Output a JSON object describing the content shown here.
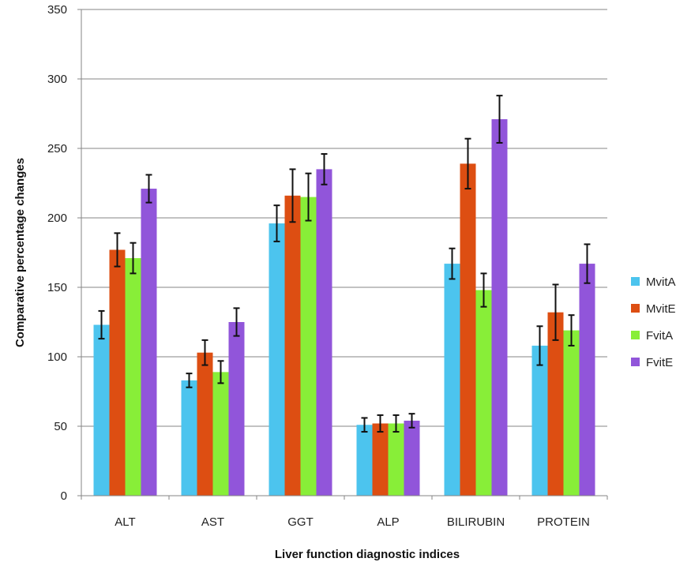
{
  "chart_data": {
    "type": "bar",
    "title": "",
    "xlabel": "Liver function diagnostic indices",
    "ylabel": "Comparative percentage changes",
    "ylim": [
      0,
      350
    ],
    "yticks": [
      0,
      50,
      100,
      150,
      200,
      250,
      300,
      350
    ],
    "categories": [
      "ALT",
      "AST",
      "GGT",
      "ALP",
      "BILIRUBIN",
      "PROTEIN"
    ],
    "grid": true,
    "legend_position": "right",
    "series": [
      {
        "name": "MvitA",
        "color": "#4CC4EE",
        "values": [
          123,
          83,
          196,
          51,
          167,
          108
        ],
        "errors": [
          10,
          5,
          13,
          5,
          11,
          14
        ]
      },
      {
        "name": "MvitE",
        "color": "#DD4E12",
        "values": [
          177,
          103,
          216,
          52,
          239,
          132
        ],
        "errors": [
          12,
          9,
          19,
          6,
          18,
          20
        ]
      },
      {
        "name": "FvitA",
        "color": "#88EE38",
        "values": [
          171,
          89,
          215,
          52,
          148,
          119
        ],
        "errors": [
          11,
          8,
          17,
          6,
          12,
          11
        ]
      },
      {
        "name": "FvitE",
        "color": "#9155DA",
        "values": [
          221,
          125,
          235,
          54,
          271,
          167
        ],
        "errors": [
          10,
          10,
          11,
          5,
          17,
          14
        ]
      }
    ]
  }
}
